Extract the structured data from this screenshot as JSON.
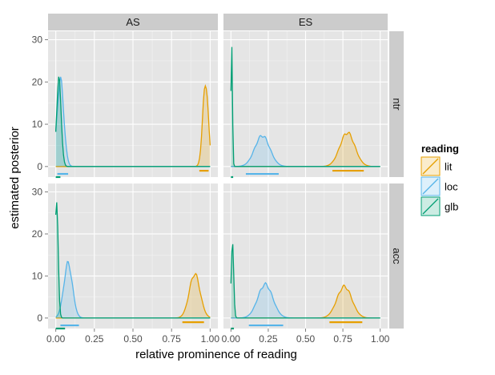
{
  "chart_data": {
    "type": "area",
    "facets": {
      "columns": [
        "AS",
        "ES"
      ],
      "rows": [
        "ntr",
        "acc"
      ]
    },
    "xlabel": "relative prominence of reading",
    "ylabel": "estimated posterior",
    "xlim": [
      -0.05,
      1.05
    ],
    "ylim": [
      -2.5,
      32
    ],
    "x_ticks": [
      0,
      0.25,
      0.5,
      0.75,
      1
    ],
    "x_tick_labels": [
      "0.00",
      "0.25",
      "0.50",
      "0.75",
      "1.00"
    ],
    "y_ticks": [
      0,
      10,
      20,
      30
    ],
    "y_tick_labels": [
      "0",
      "10",
      "20",
      "30"
    ],
    "grid": true,
    "legend": {
      "title": "reading",
      "position": "right",
      "entries": [
        "lit",
        "loc",
        "glb"
      ]
    },
    "colors": {
      "lit": "#E69F00",
      "loc": "#56B4E9",
      "glb": "#009E73"
    },
    "panels": [
      {
        "column": "AS",
        "row": "ntr",
        "series": [
          {
            "name": "lit",
            "peak_x": 0.97,
            "peak_y": 20,
            "width": 0.018,
            "interval": [
              0.93,
              0.99
            ]
          },
          {
            "name": "loc",
            "peak_x": 0.03,
            "peak_y": 20.5,
            "width": 0.022,
            "interval": [
              0.01,
              0.08
            ]
          },
          {
            "name": "glb",
            "peak_x": 0.02,
            "peak_y": 20.5,
            "width": 0.015,
            "interval": [
              0.0,
              0.03
            ]
          }
        ]
      },
      {
        "column": "ES",
        "row": "ntr",
        "series": [
          {
            "name": "lit",
            "peak_x": 0.78,
            "peak_y": 8,
            "width": 0.05,
            "interval": [
              0.68,
              0.89
            ]
          },
          {
            "name": "loc",
            "peak_x": 0.21,
            "peak_y": 7.3,
            "width": 0.05,
            "interval": [
              0.1,
              0.32
            ]
          },
          {
            "name": "glb",
            "peak_x": 0.005,
            "peak_y": 30.5,
            "width": 0.005,
            "interval": [
              0.0,
              0.015
            ]
          }
        ]
      },
      {
        "column": "AS",
        "row": "acc",
        "series": [
          {
            "name": "lit",
            "peak_x": 0.9,
            "peak_y": 10.5,
            "width": 0.035,
            "interval": [
              0.82,
              0.96
            ]
          },
          {
            "name": "loc",
            "peak_x": 0.08,
            "peak_y": 13,
            "width": 0.028,
            "interval": [
              0.03,
              0.15
            ]
          },
          {
            "name": "glb",
            "peak_x": 0.005,
            "peak_y": 29,
            "width": 0.01,
            "interval": [
              0.0,
              0.06
            ]
          }
        ]
      },
      {
        "column": "ES",
        "row": "acc",
        "series": [
          {
            "name": "lit",
            "peak_x": 0.76,
            "peak_y": 7.5,
            "width": 0.05,
            "interval": [
              0.66,
              0.88
            ]
          },
          {
            "name": "loc",
            "peak_x": 0.23,
            "peak_y": 8,
            "width": 0.05,
            "interval": [
              0.12,
              0.35
            ]
          },
          {
            "name": "glb",
            "peak_x": 0.01,
            "peak_y": 18.5,
            "width": 0.008,
            "interval": [
              0.0,
              0.02
            ]
          }
        ]
      }
    ]
  }
}
